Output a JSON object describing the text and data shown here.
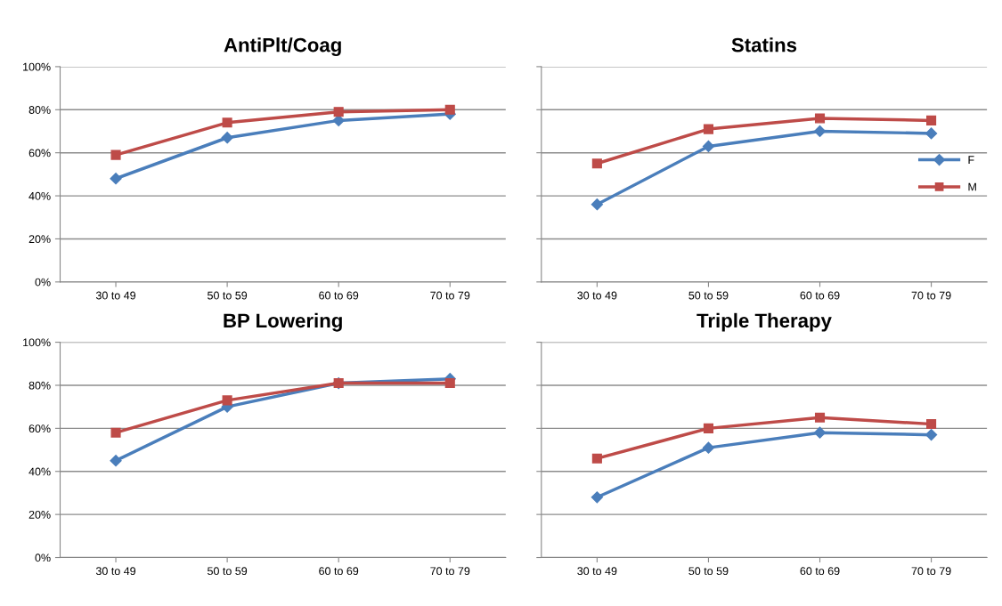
{
  "chart_data": [
    {
      "type": "line",
      "title": "AntiPlt/Coag",
      "categories": [
        "30 to 49",
        "50 to 59",
        "60 to 69",
        "70 to 79"
      ],
      "series": [
        {
          "color": "#4a7ebb",
          "marker": "diamond",
          "values": [
            48,
            67,
            75,
            78
          ]
        },
        {
          "color": "#be4b48",
          "marker": "square",
          "values": [
            59,
            74,
            79,
            80
          ]
        }
      ],
      "ylim": [
        0,
        100
      ],
      "yticks": [
        {
          "value": 0,
          "label": "0%"
        },
        {
          "value": 20,
          "label": "20%"
        },
        {
          "value": 40,
          "label": "40%"
        },
        {
          "value": 60,
          "label": "60%"
        },
        {
          "value": 80,
          "label": "80%"
        },
        {
          "value": 100,
          "label": "100%"
        }
      ],
      "grid": "y",
      "legend": false
    },
    {
      "type": "line",
      "title": "Statins",
      "categories": [
        "30 to 49",
        "50 to 59",
        "60 to 69",
        "70 to 79"
      ],
      "series": [
        {
          "name": "F",
          "color": "#4a7ebb",
          "marker": "diamond",
          "values": [
            36,
            63,
            70,
            69
          ]
        },
        {
          "name": "M",
          "color": "#be4b48",
          "marker": "square",
          "values": [
            55,
            71,
            76,
            75
          ]
        }
      ],
      "ylim": [
        0,
        100
      ],
      "yticks": [
        {
          "value": 0,
          "label": null
        },
        {
          "value": 20,
          "label": null
        },
        {
          "value": 40,
          "label": null
        },
        {
          "value": 60,
          "label": null
        },
        {
          "value": 80,
          "label": null
        },
        {
          "value": 100,
          "label": null
        }
      ],
      "tick_labels": "x",
      "grid": "y",
      "legend": "right"
    },
    {
      "type": "line",
      "title": "BP Lowering",
      "categories": [
        "30 to 49",
        "50 to 59",
        "60 to 69",
        "70 to 79"
      ],
      "series": [
        {
          "color": "#4a7ebb",
          "marker": "diamond",
          "values": [
            45,
            70,
            81,
            83
          ]
        },
        {
          "color": "#be4b48",
          "marker": "square",
          "values": [
            58,
            73,
            81,
            81
          ]
        }
      ],
      "ylim": [
        0,
        100
      ],
      "yticks": [
        {
          "value": 0,
          "label": "0%"
        },
        {
          "value": 20,
          "label": "20%"
        },
        {
          "value": 40,
          "label": "40%"
        },
        {
          "value": 60,
          "label": "60%"
        },
        {
          "value": 80,
          "label": "80%"
        },
        {
          "value": 100,
          "label": "100%"
        }
      ],
      "grid": "y",
      "legend": false
    },
    {
      "type": "line",
      "title": "Triple Therapy",
      "categories": [
        "30 to 49",
        "50 to 59",
        "60 to 69",
        "70 to 79"
      ],
      "series": [
        {
          "color": "#4a7ebb",
          "marker": "diamond",
          "values": [
            28,
            51,
            58,
            57
          ]
        },
        {
          "color": "#be4b48",
          "marker": "square",
          "values": [
            46,
            60,
            65,
            62
          ]
        }
      ],
      "ylim": [
        0,
        100
      ],
      "yticks": [
        {
          "value": 0,
          "label": null
        },
        {
          "value": 20,
          "label": null
        },
        {
          "value": 40,
          "label": null
        },
        {
          "value": 60,
          "label": null
        },
        {
          "value": 80,
          "label": null
        },
        {
          "value": 100,
          "label": null
        }
      ],
      "tick_labels": "x",
      "grid": "y",
      "legend": false
    }
  ]
}
